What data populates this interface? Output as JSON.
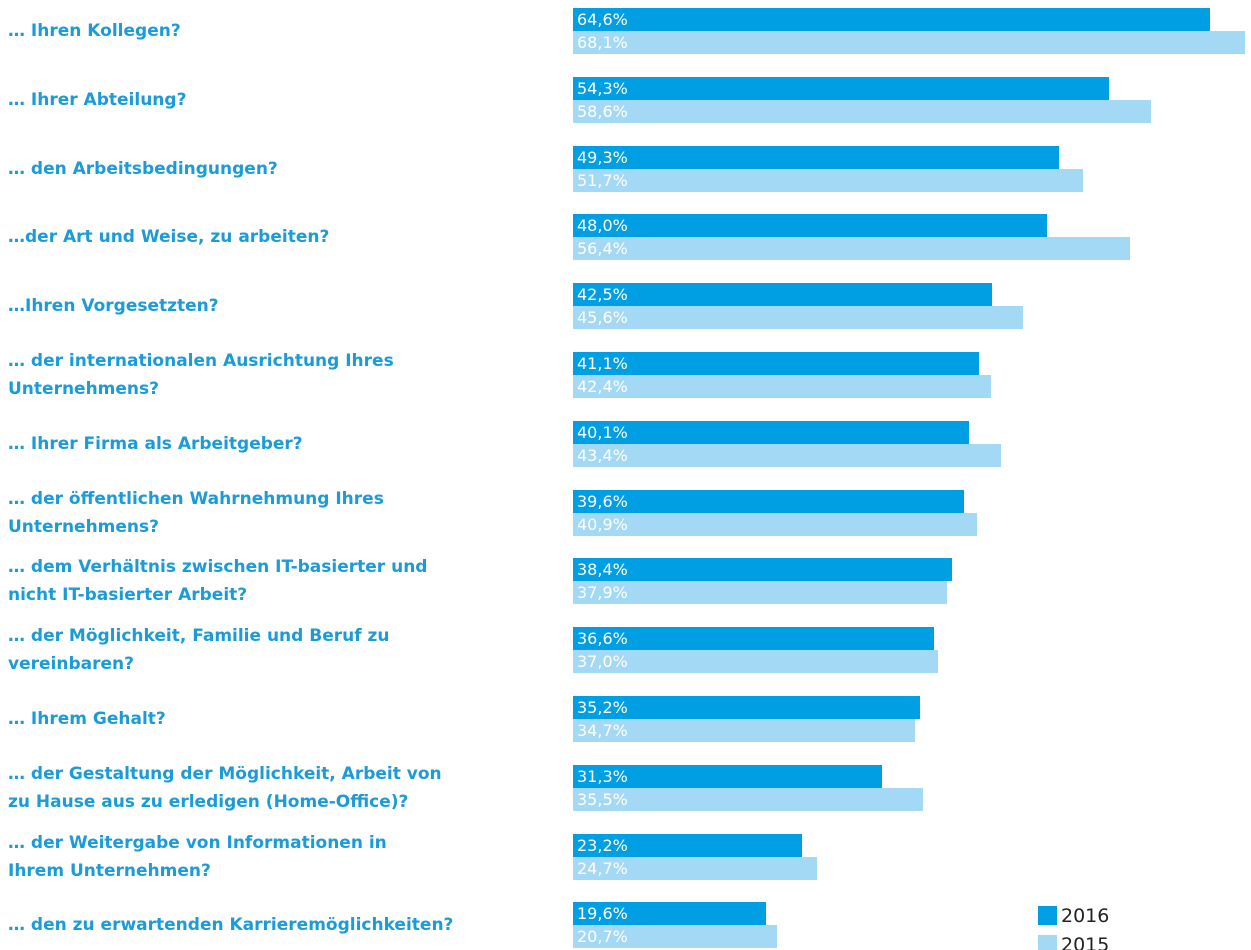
{
  "chart_data": {
    "type": "bar",
    "orientation": "horizontal",
    "categories": [
      "… Ihren Kollegen?",
      "… Ihrer Abteilung?",
      "… den Arbeitsbedingungen?",
      "…der Art und Weise, zu arbeiten?",
      "…Ihren Vorgesetzten?",
      "… der internationalen Ausrichtung Ihres\nUnternehmens?",
      "… Ihrer Firma als Arbeitgeber?",
      "… der öffentlichen Wahrnehmung Ihres\nUnternehmens?",
      "… dem Verhältnis zwischen IT-basierter und\nnicht IT-basierter Arbeit?",
      "… der Möglichkeit, Familie und Beruf zu\nvereinbaren?",
      "… Ihrem Gehalt?",
      "… der Gestaltung der Möglichkeit, Arbeit von\nzu Hause aus zu erledigen (Home-Office)?",
      "… der Weitergabe von Informationen in\nIhrem Unternehmen?",
      "… den zu erwartenden Karrieremöglichkeiten?"
    ],
    "series": [
      {
        "name": "2016",
        "color": "#009fe3",
        "values": [
          64.6,
          54.3,
          49.3,
          48.0,
          42.5,
          41.1,
          40.1,
          39.6,
          38.4,
          36.6,
          35.2,
          31.3,
          23.2,
          19.6
        ],
        "value_labels": [
          "64,6%",
          "54,3%",
          "49,3%",
          "48,0%",
          "42,5%",
          "41,1%",
          "40,1%",
          "39,6%",
          "38,4%",
          "36,6%",
          "35,2%",
          "31,3%",
          "23,2%",
          "19,6%"
        ]
      },
      {
        "name": "2015",
        "color": "#a3d9f5",
        "values": [
          68.1,
          58.6,
          51.7,
          56.4,
          45.6,
          42.4,
          43.4,
          40.9,
          37.9,
          37.0,
          34.7,
          35.5,
          24.7,
          20.7
        ],
        "value_labels": [
          "68,1%",
          "58,6%",
          "51,7%",
          "56,4%",
          "45,6%",
          "42,4%",
          "43,4%",
          "40,9%",
          "37,9%",
          "37,0%",
          "34,7%",
          "35,5%",
          "24,7%",
          "20,7%"
        ]
      }
    ]
  }
}
